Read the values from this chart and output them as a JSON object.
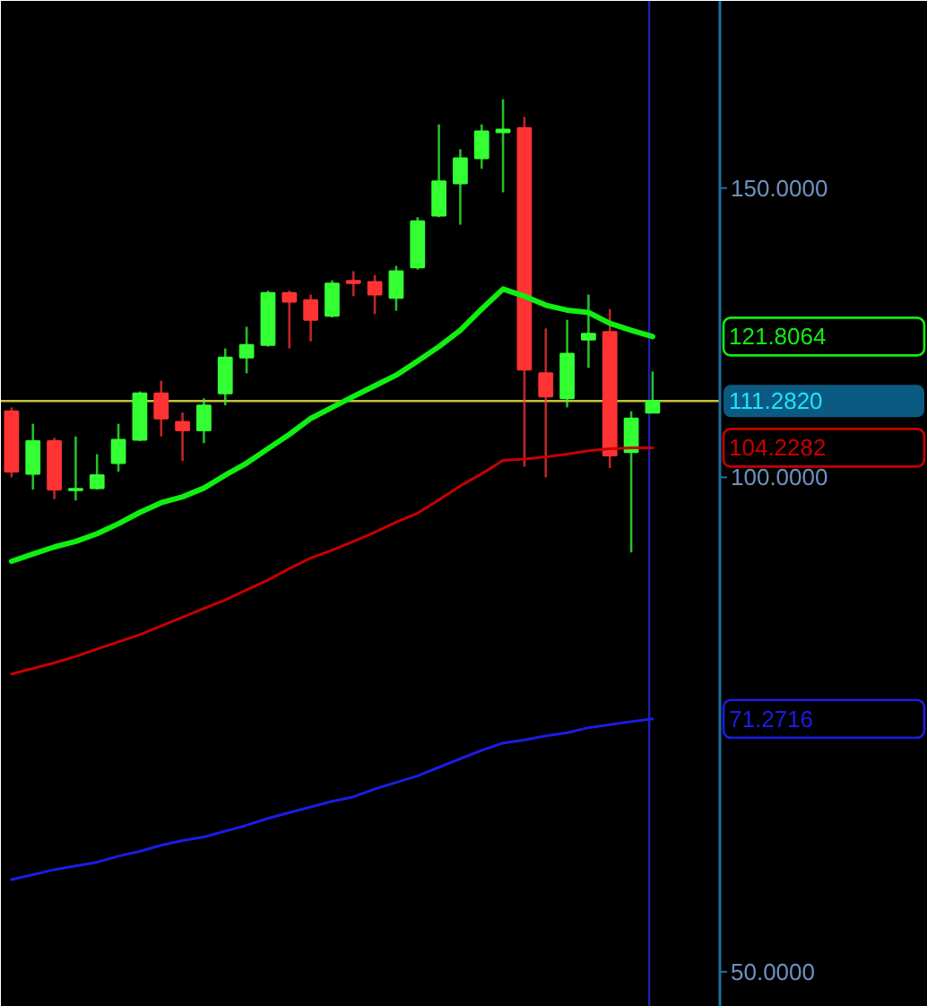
{
  "chart_data": {
    "type": "candlestick",
    "categories": [
      null,
      null,
      null,
      null,
      null,
      null,
      null,
      null,
      null,
      null,
      null,
      null,
      null,
      null,
      null,
      null,
      null,
      null,
      null,
      null,
      null,
      null,
      null,
      null,
      null,
      null,
      null,
      null,
      null,
      null,
      null
    ],
    "ohlc": [
      [
        109.7,
        110.3,
        100.0,
        100.8
      ],
      [
        100.5,
        107.8,
        98.3,
        105.2
      ],
      [
        105.2,
        105.7,
        97.0,
        98.3
      ],
      [
        98.2,
        105.9,
        96.8,
        98.4
      ],
      [
        98.5,
        103.3,
        98.3,
        100.3
      ],
      [
        102.0,
        107.8,
        100.8,
        105.4
      ],
      [
        105.4,
        112.8,
        105.2,
        112.5
      ],
      [
        112.5,
        114.5,
        105.9,
        108.6
      ],
      [
        108.1,
        109.5,
        102.3,
        106.8
      ],
      [
        106.8,
        111.7,
        104.9,
        110.6
      ],
      [
        112.5,
        119.8,
        110.6,
        118.3
      ],
      [
        118.3,
        123.5,
        115.7,
        120.4
      ],
      [
        120.4,
        129.9,
        120.1,
        129.5
      ],
      [
        129.5,
        129.9,
        119.8,
        127.9
      ],
      [
        128.2,
        129.2,
        121.0,
        124.7
      ],
      [
        125.4,
        131.8,
        125.1,
        131.2
      ],
      [
        131.7,
        133.5,
        128.9,
        131.3
      ],
      [
        131.5,
        132.8,
        125.7,
        129.2
      ],
      [
        128.6,
        134.5,
        126.3,
        133.5
      ],
      [
        134.2,
        144.0,
        133.8,
        143.2
      ],
      [
        144.3,
        164.0,
        144.0,
        151.4
      ],
      [
        151.0,
        158.4,
        142.5,
        156.4
      ],
      [
        156.4,
        164.0,
        154.1,
        162.4
      ],
      [
        162.2,
        169.9,
        149.1,
        162.8
      ],
      [
        163.2,
        165.7,
        101.5,
        116.3
      ],
      [
        115.7,
        123.2,
        100.0,
        112.0
      ],
      [
        111.7,
        124.7,
        110.3,
        118.9
      ],
      [
        121.3,
        129.2,
        116.6,
        122.3
      ],
      [
        122.6,
        126.6,
        101.3,
        103.1
      ],
      [
        103.6,
        109.7,
        90.0,
        108.6
      ],
      [
        109.5,
        116.0,
        109.5,
        111.282
      ]
    ],
    "colors": [
      "#ff3333",
      "#33ff33",
      "#ff3333",
      "#33ff33",
      "#33ff33",
      "#33ff33",
      "#33ff33",
      "#ff3333",
      "#ff3333",
      "#33ff33",
      "#33ff33",
      "#33ff33",
      "#33ff33",
      "#ff3333",
      "#ff3333",
      "#33ff33",
      "#ff3333",
      "#ff3333",
      "#33ff33",
      "#33ff33",
      "#33ff33",
      "#33ff33",
      "#33ff33",
      "#33ff33",
      "#ff3333",
      "#ff3333",
      "#33ff33",
      "#33ff33",
      "#ff3333",
      "#33ff33",
      "#33ff33"
    ],
    "series": [
      {
        "type": "line",
        "color": "#11ee11",
        "values": [
          88.9,
          89.8,
          90.7,
          91.4,
          92.4,
          93.7,
          95.2,
          96.5,
          97.3,
          98.5,
          100.3,
          102.0,
          104.1,
          106.2,
          108.6,
          110.3,
          112.0,
          113.7,
          115.4,
          117.7,
          120.1,
          122.9,
          126.6,
          130.2,
          128.9,
          127.3,
          126.4,
          126.0,
          124.1,
          122.9,
          121.8064
        ]
      },
      {
        "type": "line",
        "color": "#c80000",
        "values": [
          75.9,
          76.5,
          77.1,
          77.8,
          78.6,
          79.4,
          80.2,
          81.2,
          82.2,
          83.2,
          84.2,
          85.4,
          86.6,
          88.0,
          89.3,
          90.3,
          91.4,
          92.6,
          93.9,
          95.1,
          96.9,
          98.8,
          100.5,
          102.4,
          102.6,
          102.9,
          103.3,
          103.8,
          104.1,
          104.2,
          104.2282
        ]
      },
      {
        "type": "line",
        "color": "#1c1ce6",
        "values": [
          56.9,
          57.3,
          57.7,
          58.0,
          58.3,
          58.8,
          59.2,
          59.7,
          60.1,
          60.4,
          60.9,
          61.4,
          62.0,
          62.5,
          63.0,
          63.5,
          63.9,
          64.6,
          65.2,
          65.8,
          66.6,
          67.4,
          68.2,
          68.9,
          69.2,
          69.6,
          69.9,
          70.4,
          70.7,
          71.0,
          71.2716
        ]
      }
    ],
    "annotations": [
      "121.8064",
      "104.2282",
      "71.2716"
    ],
    "ref_lines": [
      {
        "axis": "y",
        "value": 111.282,
        "label": "111.2820",
        "color": "#c2c23c"
      }
    ],
    "ylim": [
      47.6,
      195.0
    ],
    "yticks": [
      {
        "value": 150,
        "label": "150.0000"
      },
      {
        "value": 100,
        "label": "100.0000"
      },
      {
        "value": 50,
        "label": "50.0000"
      }
    ],
    "log": true,
    "tick_labels": "y"
  }
}
